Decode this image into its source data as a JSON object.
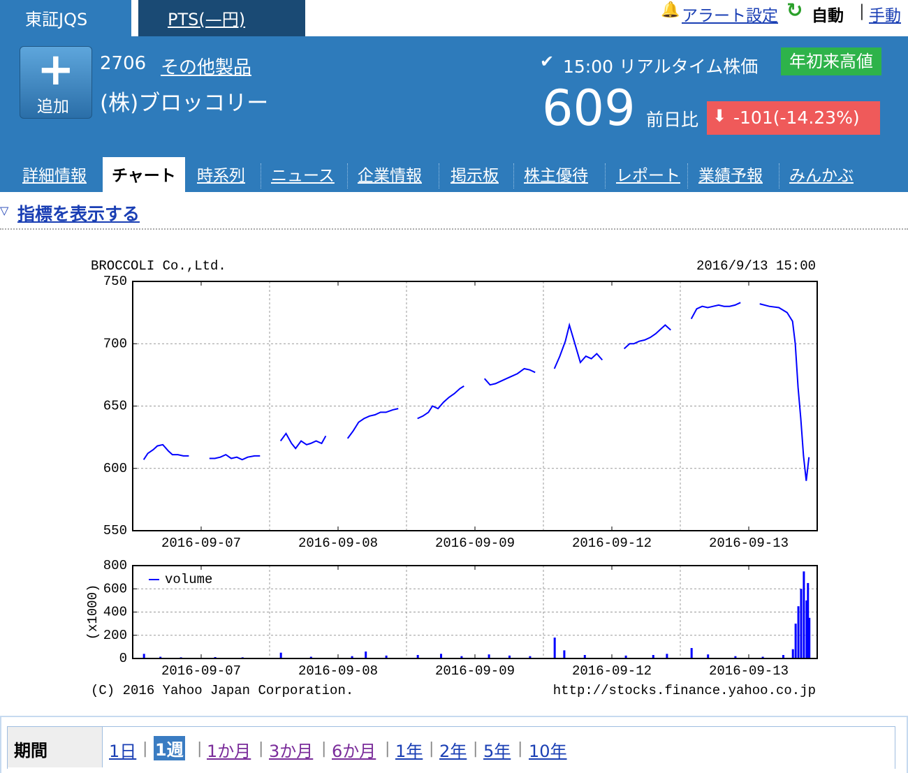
{
  "tabs": [
    "東証JQS",
    "PTS(—円)"
  ],
  "header_links": {
    "alert": "アラート設定",
    "auto": "自動",
    "manual": "手動"
  },
  "stock": {
    "add": "追加",
    "code": "2706",
    "industry": "その他製品",
    "name": "(株)ブロッコリー",
    "time": "15:00 リアルタイム株価",
    "badge": "年初来高値",
    "price": "609",
    "change_label": "前日比",
    "change": "-101(-14.23%)"
  },
  "nav": [
    "詳細情報",
    "チャート",
    "時系列",
    "ニュース",
    "企業情報",
    "掲示板",
    "株主優待",
    "レポート",
    "業績予報",
    "みんかぶ"
  ],
  "indicator_toggle": "指標を表示する",
  "chart_data": [
    {
      "type": "line",
      "title": "BROCCOLI Co.,Ltd.",
      "subtitle": "2016/9/13 15:00",
      "color": "#0000ff",
      "grid": true,
      "x": [
        0.08,
        0.11,
        0.15,
        0.18,
        0.22,
        0.26,
        0.29,
        0.33,
        0.37,
        0.41,
        null,
        0.56,
        0.6,
        0.64,
        0.68,
        0.72,
        0.76,
        0.8,
        0.84,
        0.89,
        0.93,
        null,
        1.08,
        1.12,
        1.16,
        1.19,
        1.23,
        1.27,
        1.3,
        1.34,
        1.38,
        1.41,
        null,
        1.57,
        1.61,
        1.65,
        1.69,
        1.73,
        1.77,
        1.81,
        1.85,
        1.9,
        1.94,
        null,
        2.08,
        2.12,
        2.16,
        2.19,
        2.23,
        2.27,
        2.31,
        2.35,
        2.39,
        2.42,
        null,
        2.57,
        2.61,
        2.65,
        2.69,
        2.73,
        2.77,
        2.81,
        2.86,
        2.9,
        2.94,
        null,
        3.08,
        3.12,
        3.16,
        3.19,
        3.23,
        3.27,
        3.31,
        3.35,
        3.39,
        3.43,
        null,
        3.59,
        3.63,
        3.66,
        3.7,
        3.74,
        3.78,
        3.82,
        3.86,
        3.89,
        3.93,
        null,
        4.08,
        4.12,
        4.16,
        4.2,
        4.24,
        4.28,
        4.32,
        4.36,
        4.4,
        4.44,
        null,
        4.58,
        4.65,
        4.72,
        4.78,
        4.82,
        4.84,
        4.86,
        4.88,
        4.9,
        4.92,
        4.94
      ],
      "values": [
        607,
        612,
        615,
        618,
        619,
        614,
        611,
        611,
        610,
        610,
        null,
        608,
        608,
        609,
        611,
        608,
        609,
        607,
        609,
        610,
        610,
        null,
        622,
        628,
        620,
        616,
        622,
        619,
        620,
        622,
        620,
        626,
        null,
        624,
        630,
        637,
        640,
        642,
        643,
        645,
        645,
        647,
        648,
        null,
        640,
        642,
        645,
        650,
        648,
        653,
        657,
        660,
        664,
        666,
        null,
        672,
        667,
        668,
        670,
        672,
        674,
        676,
        680,
        679,
        677,
        null,
        680,
        690,
        702,
        715,
        700,
        685,
        690,
        688,
        692,
        687,
        null,
        696,
        700,
        700,
        702,
        703,
        705,
        708,
        712,
        715,
        711,
        null,
        720,
        728,
        730,
        729,
        730,
        731,
        730,
        730,
        731,
        733,
        null,
        732,
        730,
        729,
        725,
        718,
        700,
        665,
        640,
        610,
        590,
        609
      ],
      "xlim": [
        0,
        5
      ],
      "xticks": [
        {
          "value": 0.5,
          "label": "2016-09-07"
        },
        {
          "value": 1.5,
          "label": "2016-09-08"
        },
        {
          "value": 2.5,
          "label": "2016-09-09"
        },
        {
          "value": 3.5,
          "label": "2016-09-12"
        },
        {
          "value": 4.5,
          "label": "2016-09-13"
        }
      ],
      "ylim": [
        550,
        750
      ],
      "yticks": [
        550,
        600,
        650,
        700,
        750
      ]
    },
    {
      "type": "bar",
      "ylabel": "(x1000)",
      "grid": true,
      "legend": "upper left",
      "annotations": [
        "(C) 2016 Yahoo Japan Corporation.",
        "http://stocks.finance.yahoo.co.jp"
      ],
      "x": [
        0.08,
        0.2,
        0.35,
        0.6,
        0.8,
        1.08,
        1.3,
        1.6,
        1.7,
        1.85,
        2.08,
        2.25,
        2.4,
        2.6,
        2.75,
        2.9,
        3.08,
        3.15,
        3.3,
        3.6,
        3.8,
        3.9,
        4.08,
        4.2,
        4.4,
        4.6,
        4.75,
        4.82,
        4.84,
        4.86,
        4.88,
        4.9,
        4.92,
        4.93,
        4.94
      ],
      "series": [
        {
          "name": "volume",
          "color": "#0000ff",
          "values": [
            40,
            15,
            10,
            12,
            10,
            50,
            15,
            20,
            60,
            25,
            30,
            40,
            20,
            35,
            25,
            20,
            180,
            70,
            30,
            25,
            30,
            40,
            90,
            35,
            20,
            15,
            30,
            80,
            300,
            450,
            600,
            750,
            500,
            650,
            350
          ]
        }
      ],
      "xlim": [
        0,
        5
      ],
      "xticks": [
        {
          "value": 0.5,
          "label": "2016-09-07"
        },
        {
          "value": 1.5,
          "label": "2016-09-08"
        },
        {
          "value": 2.5,
          "label": "2016-09-09"
        },
        {
          "value": 3.5,
          "label": "2016-09-12"
        },
        {
          "value": 4.5,
          "label": "2016-09-13"
        }
      ],
      "ylim": [
        0,
        800
      ],
      "yticks": [
        0,
        200,
        400,
        600,
        800
      ]
    }
  ],
  "period": {
    "label": "期間",
    "options": [
      "1日",
      "1週",
      "1か月",
      "3か月",
      "6か月",
      "1年",
      "2年",
      "5年",
      "10年"
    ]
  }
}
